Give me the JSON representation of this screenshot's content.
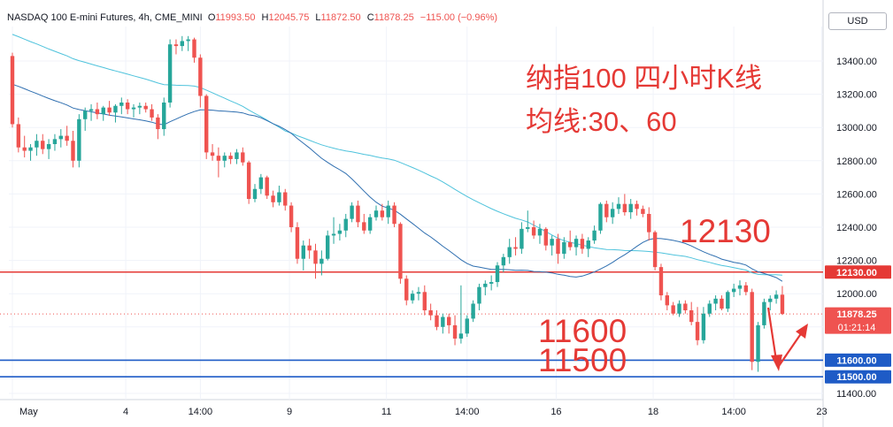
{
  "header": {
    "symbol": "NASDAQ 100 E-mini Futures, 4h, CME_MINI",
    "open_label": "O",
    "open": "11993.50",
    "high_label": "H",
    "high": "12045.75",
    "low_label": "L",
    "low": "11872.50",
    "close_label": "C",
    "close": "11878.25",
    "change": "−115.00 (−0.96%)"
  },
  "currency": "USD",
  "annotations": {
    "title_line1": "纳指100 四小时K线",
    "title_line2": "均线:30、60",
    "level_12130": "12130",
    "level_11600": "11600",
    "level_11500": "11500"
  },
  "colors": {
    "up": "#26a69a",
    "down": "#ef5350",
    "ma30": "#2f6fb0",
    "ma60": "#4fc3dc",
    "resistance": "#e53935",
    "support": "#1e5bc6",
    "annotation": "#e53935"
  },
  "chart_data": {
    "type": "candlestick",
    "ylim": [
      11400,
      13600
    ],
    "y_ticks": [
      "13400.00",
      "13200.00",
      "13000.00",
      "12800.00",
      "12600.00",
      "12400.00",
      "12200.00",
      "12000.00",
      "11800.00",
      "11600.00",
      "11400.00"
    ],
    "x_labels": [
      {
        "label": "May",
        "x": 0
      },
      {
        "label": "4",
        "x": 18.7
      },
      {
        "label": "14:00",
        "x": 31
      },
      {
        "label": "9",
        "x": 45.7
      },
      {
        "label": "11",
        "x": 61.7
      },
      {
        "label": "14:00",
        "x": 75
      },
      {
        "label": "16",
        "x": 89.7
      },
      {
        "label": "18",
        "x": 105.7
      },
      {
        "label": "14:00",
        "x": 119
      },
      {
        "label": "23",
        "x": 133.5
      }
    ],
    "price_labels": [
      {
        "text": "12130.00",
        "value": 12130,
        "color": "#e53935"
      },
      {
        "text": "11878.25",
        "value": 11878.25,
        "color": "#ef5350",
        "sub": "01:21:14"
      },
      {
        "text": "11600.00",
        "value": 11600,
        "color": "#1e5bc6"
      },
      {
        "text": "11500.00",
        "value": 11500,
        "color": "#1e5bc6"
      }
    ],
    "levels": [
      {
        "value": 12130,
        "color": "#e53935"
      },
      {
        "value": 11600,
        "color": "#1e5bc6"
      },
      {
        "value": 11500,
        "color": "#1e5bc6"
      }
    ],
    "last_price": 11878.25,
    "candles": [
      [
        13430,
        13450,
        13000,
        13020
      ],
      [
        13020,
        13060,
        12850,
        12880
      ],
      [
        12880,
        12950,
        12820,
        12860
      ],
      [
        12860,
        12900,
        12800,
        12880
      ],
      [
        12880,
        12960,
        12830,
        12920
      ],
      [
        12920,
        12960,
        12840,
        12870
      ],
      [
        12870,
        12930,
        12810,
        12900
      ],
      [
        12900,
        12960,
        12860,
        12930
      ],
      [
        12930,
        12990,
        12880,
        12950
      ],
      [
        12950,
        13010,
        12890,
        12920
      ],
      [
        12920,
        12980,
        12760,
        12800
      ],
      [
        12800,
        13080,
        12760,
        13050
      ],
      [
        13050,
        13120,
        12980,
        13100
      ],
      [
        13100,
        13140,
        13040,
        13110
      ],
      [
        13110,
        13150,
        13050,
        13080
      ],
      [
        13080,
        13130,
        13040,
        13120
      ],
      [
        13120,
        13160,
        13070,
        13090
      ],
      [
        13090,
        13140,
        13030,
        13130
      ],
      [
        13130,
        13180,
        13080,
        13150
      ],
      [
        13150,
        13170,
        13080,
        13110
      ],
      [
        13110,
        13140,
        13060,
        13120
      ],
      [
        13120,
        13150,
        13080,
        13130
      ],
      [
        13130,
        13150,
        13090,
        13110
      ],
      [
        13110,
        13140,
        13040,
        13060
      ],
      [
        13060,
        13080,
        12930,
        12990
      ],
      [
        12990,
        13180,
        12950,
        13150
      ],
      [
        13150,
        13530,
        13120,
        13500
      ],
      [
        13500,
        13530,
        13440,
        13490
      ],
      [
        13490,
        13550,
        13460,
        13520
      ],
      [
        13520,
        13550,
        13460,
        13530
      ],
      [
        13530,
        13540,
        13390,
        13420
      ],
      [
        13420,
        13440,
        13120,
        13190
      ],
      [
        13190,
        13200,
        12810,
        12850
      ],
      [
        12850,
        12900,
        12800,
        12830
      ],
      [
        12830,
        12880,
        12700,
        12800
      ],
      [
        12800,
        12850,
        12760,
        12830
      ],
      [
        12830,
        12850,
        12780,
        12810
      ],
      [
        12810,
        12870,
        12780,
        12850
      ],
      [
        12850,
        12880,
        12770,
        12790
      ],
      [
        12790,
        12800,
        12540,
        12570
      ],
      [
        12570,
        12660,
        12550,
        12630
      ],
      [
        12630,
        12720,
        12600,
        12700
      ],
      [
        12700,
        12710,
        12570,
        12590
      ],
      [
        12590,
        12620,
        12520,
        12550
      ],
      [
        12550,
        12650,
        12530,
        12610
      ],
      [
        12610,
        12630,
        12500,
        12530
      ],
      [
        12530,
        12550,
        12370,
        12400
      ],
      [
        12400,
        12430,
        12180,
        12210
      ],
      [
        12210,
        12320,
        12140,
        12290
      ],
      [
        12290,
        12330,
        12210,
        12260
      ],
      [
        12260,
        12300,
        12090,
        12180
      ],
      [
        12180,
        12260,
        12110,
        12210
      ],
      [
        12210,
        12380,
        12200,
        12350
      ],
      [
        12350,
        12460,
        12300,
        12360
      ],
      [
        12360,
        12420,
        12320,
        12380
      ],
      [
        12380,
        12480,
        12340,
        12450
      ],
      [
        12450,
        12550,
        12430,
        12530
      ],
      [
        12530,
        12560,
        12400,
        12430
      ],
      [
        12430,
        12480,
        12360,
        12380
      ],
      [
        12380,
        12480,
        12360,
        12460
      ],
      [
        12460,
        12530,
        12440,
        12500
      ],
      [
        12500,
        12540,
        12440,
        12460
      ],
      [
        12460,
        12560,
        12420,
        12530
      ],
      [
        12530,
        12550,
        12400,
        12420
      ],
      [
        12420,
        12430,
        12060,
        12090
      ],
      [
        12090,
        12110,
        11930,
        11960
      ],
      [
        11960,
        12020,
        11940,
        12000
      ],
      [
        12000,
        12040,
        11960,
        12010
      ],
      [
        12010,
        12050,
        11870,
        11900
      ],
      [
        11900,
        11940,
        11840,
        11870
      ],
      [
        11870,
        11900,
        11780,
        11800
      ],
      [
        11800,
        11880,
        11760,
        11860
      ],
      [
        11860,
        11880,
        11760,
        11810
      ],
      [
        11810,
        11870,
        11690,
        11730
      ],
      [
        11730,
        12050,
        11700,
        11760
      ],
      [
        11760,
        11870,
        11740,
        11850
      ],
      [
        11850,
        11960,
        11830,
        11940
      ],
      [
        11940,
        12060,
        11900,
        12040
      ],
      [
        12040,
        12080,
        11990,
        12060
      ],
      [
        12060,
        12110,
        12020,
        12070
      ],
      [
        12070,
        12190,
        12040,
        12170
      ],
      [
        12170,
        12240,
        12130,
        12220
      ],
      [
        12220,
        12330,
        12180,
        12280
      ],
      [
        12280,
        12340,
        12230,
        12270
      ],
      [
        12270,
        12430,
        12240,
        12390
      ],
      [
        12390,
        12500,
        12370,
        12400
      ],
      [
        12400,
        12440,
        12330,
        12350
      ],
      [
        12350,
        12420,
        12300,
        12390
      ],
      [
        12390,
        12400,
        12260,
        12290
      ],
      [
        12290,
        12350,
        12230,
        12330
      ],
      [
        12330,
        12360,
        12180,
        12240
      ],
      [
        12240,
        12340,
        12210,
        12310
      ],
      [
        12310,
        12380,
        12260,
        12280
      ],
      [
        12280,
        12350,
        12230,
        12330
      ],
      [
        12330,
        12360,
        12240,
        12270
      ],
      [
        12270,
        12340,
        12220,
        12320
      ],
      [
        12320,
        12410,
        12300,
        12380
      ],
      [
        12380,
        12550,
        12360,
        12540
      ],
      [
        12540,
        12560,
        12430,
        12460
      ],
      [
        12460,
        12550,
        12420,
        12510
      ],
      [
        12510,
        12580,
        12480,
        12540
      ],
      [
        12540,
        12600,
        12470,
        12490
      ],
      [
        12490,
        12570,
        12450,
        12540
      ],
      [
        12540,
        12560,
        12470,
        12510
      ],
      [
        12510,
        12530,
        12460,
        12480
      ],
      [
        12480,
        12520,
        12320,
        12370
      ],
      [
        12370,
        12380,
        12140,
        12160
      ],
      [
        12160,
        12180,
        11960,
        11990
      ],
      [
        11990,
        12010,
        11900,
        11930
      ],
      [
        11930,
        11950,
        11870,
        11880
      ],
      [
        11880,
        11960,
        11860,
        11940
      ],
      [
        11940,
        11960,
        11880,
        11900
      ],
      [
        11900,
        11950,
        11810,
        11830
      ],
      [
        11830,
        11920,
        11690,
        11720
      ],
      [
        11720,
        11920,
        11700,
        11880
      ],
      [
        11880,
        11960,
        11860,
        11940
      ],
      [
        11940,
        11990,
        11900,
        11970
      ],
      [
        11970,
        11990,
        11900,
        11910
      ],
      [
        11910,
        12020,
        11890,
        12010
      ],
      [
        12010,
        12060,
        11980,
        12030
      ],
      [
        12030,
        12080,
        11990,
        12050
      ],
      [
        12050,
        12070,
        11990,
        12010
      ],
      [
        12010,
        12030,
        11540,
        11590
      ],
      [
        11590,
        11830,
        11530,
        11810
      ],
      [
        11810,
        11970,
        11790,
        11950
      ],
      [
        11950,
        11990,
        11900,
        11970
      ],
      [
        11970,
        12020,
        11940,
        11994
      ],
      [
        11994,
        12046,
        11872,
        11878
      ]
    ]
  }
}
